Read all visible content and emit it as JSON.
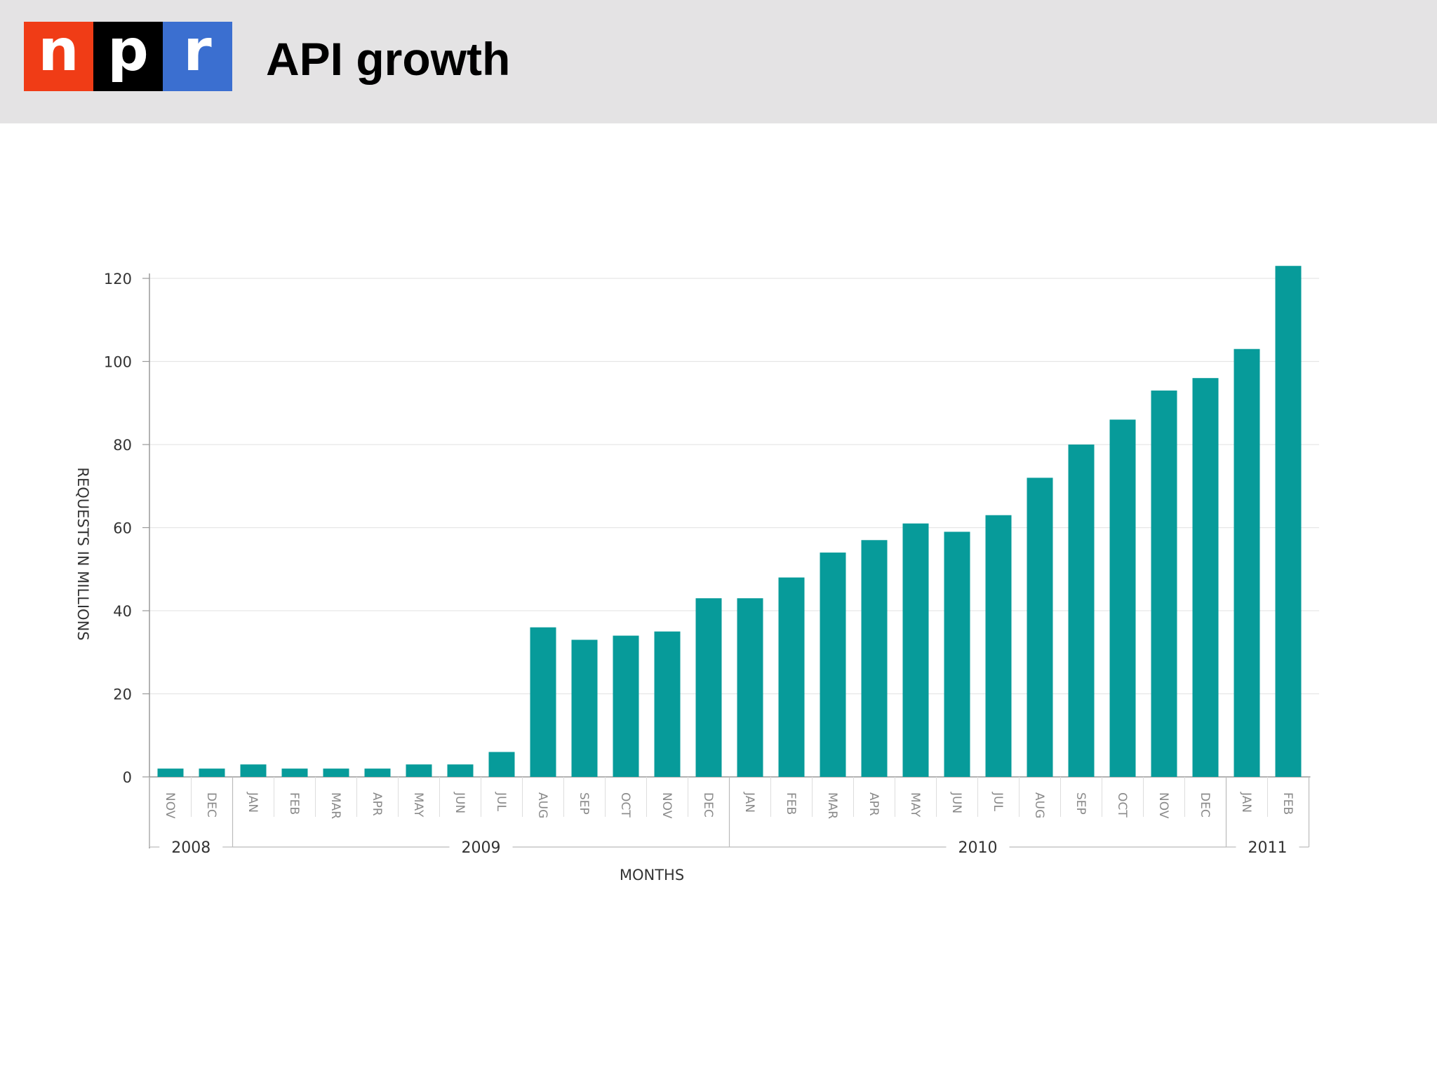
{
  "header": {
    "logo": {
      "letters": [
        "n",
        "p",
        "r"
      ],
      "colors": [
        "#f03c16",
        "#000000",
        "#3b6fd0"
      ]
    },
    "title": "API growth",
    "background": "#e4e3e4"
  },
  "chart_data": {
    "type": "bar",
    "title": "",
    "xlabel": "MONTHS",
    "ylabel": "REQUESTS IN MILLIONS",
    "ylim": [
      0,
      120
    ],
    "yticks": [
      "0",
      "20",
      "40",
      "60",
      "80",
      "100",
      "120"
    ],
    "grid": true,
    "bar_color": "#079b9a",
    "categories": [
      "NOV",
      "DEC",
      "JAN",
      "FEB",
      "MAR",
      "APR",
      "MAY",
      "JUN",
      "JUL",
      "AUG",
      "SEP",
      "OCT",
      "NOV",
      "DEC",
      "JAN",
      "FEB",
      "MAR",
      "APR",
      "MAY",
      "JUN",
      "JUL",
      "AUG",
      "SEP",
      "OCT",
      "NOV",
      "DEC",
      "JAN",
      "FEB"
    ],
    "values": [
      2,
      2,
      3,
      2,
      2,
      2,
      3,
      3,
      6,
      36,
      33,
      34,
      35,
      43,
      43,
      48,
      54,
      57,
      61,
      59,
      63,
      72,
      80,
      86,
      93,
      96,
      103,
      123
    ],
    "year_groups": [
      {
        "label": "2008",
        "start": 0,
        "end": 1
      },
      {
        "label": "2009",
        "start": 2,
        "end": 13
      },
      {
        "label": "2010",
        "start": 14,
        "end": 25
      },
      {
        "label": "2011",
        "start": 26,
        "end": 27
      }
    ]
  }
}
